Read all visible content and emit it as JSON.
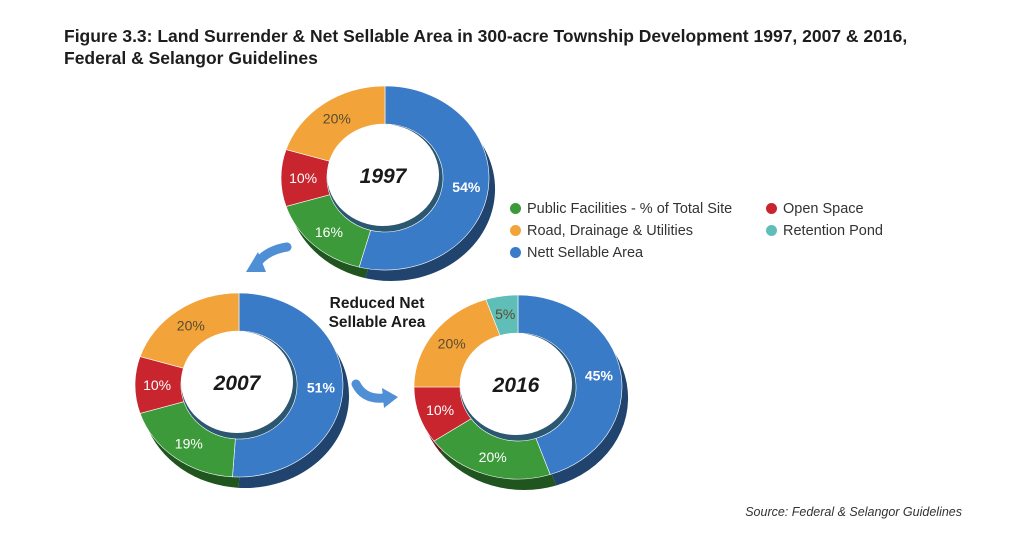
{
  "title_lines": [
    "Figure 3.3: Land Surrender & Net Sellable Area in 300-acre Township Development 1997, 2007 & 2016,",
    "Federal & Selangor Guidelines"
  ],
  "source": "Source: Federal & Selangor Guidelines",
  "annotation_lines": [
    "Reduced Net",
    "Sellable Area"
  ],
  "colors": {
    "public_facilities": "#3c9a3b",
    "road_drainage": "#f2a43a",
    "nett_sellable": "#3a7bc8",
    "open_space": "#c8252f",
    "retention_pond": "#5fbfb8",
    "arrow": "#4f8fd6"
  },
  "legend": [
    {
      "label": "Public Facilities - % of Total Site",
      "color_key": "public_facilities"
    },
    {
      "label": "Open Space",
      "color_key": "open_space"
    },
    {
      "label": "Road, Drainage & Utilities",
      "color_key": "road_drainage"
    },
    {
      "label": "Retention Pond",
      "color_key": "retention_pond"
    },
    {
      "label": "Nett Sellable Area",
      "color_key": "nett_sellable"
    }
  ],
  "chart_data": [
    {
      "type": "pie",
      "title": "1997",
      "slices": [
        {
          "series": "Nett Sellable Area",
          "value": 54,
          "label": "54%",
          "color_key": "nett_sellable"
        },
        {
          "series": "Public Facilities - % of Total Site",
          "value": 16,
          "label": "16%",
          "color_key": "public_facilities"
        },
        {
          "series": "Open Space",
          "value": 10,
          "label": "10%",
          "color_key": "open_space"
        },
        {
          "series": "Road, Drainage & Utilities",
          "value": 20,
          "label": "20%",
          "color_key": "road_drainage"
        }
      ]
    },
    {
      "type": "pie",
      "title": "2007",
      "slices": [
        {
          "series": "Nett Sellable Area",
          "value": 51,
          "label": "51%",
          "color_key": "nett_sellable"
        },
        {
          "series": "Public Facilities - % of Total Site",
          "value": 19,
          "label": "19%",
          "color_key": "public_facilities"
        },
        {
          "series": "Open Space",
          "value": 10,
          "label": "10%",
          "color_key": "open_space"
        },
        {
          "series": "Road, Drainage & Utilities",
          "value": 20,
          "label": "20%",
          "color_key": "road_drainage"
        }
      ]
    },
    {
      "type": "pie",
      "title": "2016",
      "slices": [
        {
          "series": "Nett Sellable Area",
          "value": 45,
          "label": "45%",
          "color_key": "nett_sellable"
        },
        {
          "series": "Public Facilities - % of Total Site",
          "value": 20,
          "label": "20%",
          "color_key": "public_facilities"
        },
        {
          "series": "Open Space",
          "value": 10,
          "label": "10%",
          "color_key": "open_space"
        },
        {
          "series": "Road, Drainage & Utilities",
          "value": 20,
          "label": "20%",
          "color_key": "road_drainage"
        },
        {
          "series": "Retention Pond",
          "value": 5,
          "label": "5%",
          "color_key": "retention_pond"
        }
      ]
    }
  ]
}
